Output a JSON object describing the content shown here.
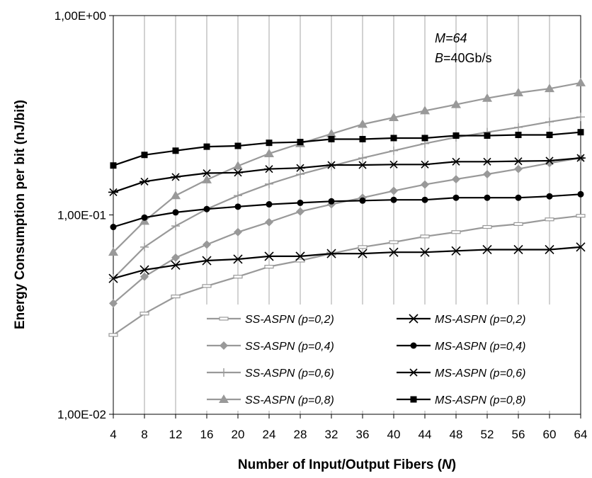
{
  "chart_data": {
    "type": "line",
    "title": "",
    "xlabel": "Number of Input/Output Fibers (N)",
    "xlabel_parts": {
      "pre": "Number of Input/Output Fibers (",
      "var": "N",
      "post": ")"
    },
    "ylabel": "Energy Consumption per bit (nJ/bit)",
    "y_scale": "log",
    "ylim": [
      0.01,
      1
    ],
    "y_tick_values": [
      1,
      0.1,
      0.01
    ],
    "y_tick_labels": [
      "1,00E+00",
      "1,00E-01",
      "1,00E-02"
    ],
    "x": [
      4,
      8,
      12,
      16,
      20,
      24,
      28,
      32,
      36,
      40,
      44,
      48,
      52,
      56,
      60,
      64
    ],
    "x_tick_labels": [
      "4",
      "8",
      "12",
      "16",
      "20",
      "24",
      "28",
      "32",
      "36",
      "40",
      "44",
      "48",
      "52",
      "56",
      "60",
      "64"
    ],
    "grid": "vertical",
    "legend_position": "bottom-right",
    "annotations": [
      {
        "var": "M",
        "text": "=64"
      },
      {
        "var": "B",
        "text": "=40Gb/s"
      }
    ],
    "series": [
      {
        "name": "SS-ASPN (p=0,2)",
        "color": "#999999",
        "marker": "dash",
        "values": [
          0.025,
          0.032,
          0.039,
          0.044,
          0.049,
          0.055,
          0.059,
          0.064,
          0.069,
          0.073,
          0.078,
          0.082,
          0.087,
          0.09,
          0.095,
          0.099
        ]
      },
      {
        "name": "SS-ASPN (p=0,4)",
        "color": "#999999",
        "marker": "diamond",
        "values": [
          0.036,
          0.049,
          0.061,
          0.071,
          0.082,
          0.092,
          0.104,
          0.113,
          0.122,
          0.132,
          0.142,
          0.151,
          0.16,
          0.17,
          0.182,
          0.193
        ]
      },
      {
        "name": "SS-ASPN (p=0,6)",
        "color": "#999999",
        "marker": "plus",
        "values": [
          0.048,
          0.069,
          0.088,
          0.107,
          0.125,
          0.143,
          0.16,
          0.176,
          0.193,
          0.21,
          0.228,
          0.245,
          0.26,
          0.275,
          0.293,
          0.31
        ]
      },
      {
        "name": "SS-ASPN (p=0,8)",
        "color": "#999999",
        "marker": "triangle",
        "values": [
          0.065,
          0.093,
          0.125,
          0.15,
          0.176,
          0.203,
          0.228,
          0.255,
          0.285,
          0.308,
          0.333,
          0.358,
          0.385,
          0.41,
          0.43,
          0.46
        ]
      },
      {
        "name": "MS-ASPN  (p=0,2)",
        "color": "#000000",
        "marker": "x",
        "values": [
          0.048,
          0.053,
          0.056,
          0.059,
          0.06,
          0.062,
          0.062,
          0.064,
          0.064,
          0.065,
          0.065,
          0.066,
          0.067,
          0.067,
          0.067,
          0.069
        ]
      },
      {
        "name": "MS-ASPN  (p=0,4)",
        "color": "#000000",
        "marker": "circle",
        "values": [
          0.087,
          0.097,
          0.103,
          0.107,
          0.11,
          0.113,
          0.115,
          0.117,
          0.118,
          0.119,
          0.119,
          0.122,
          0.122,
          0.122,
          0.124,
          0.127
        ]
      },
      {
        "name": "MS-ASPN  (p=0,6)",
        "color": "#000000",
        "marker": "asterisk",
        "values": [
          0.13,
          0.147,
          0.155,
          0.162,
          0.163,
          0.17,
          0.172,
          0.178,
          0.178,
          0.179,
          0.179,
          0.185,
          0.185,
          0.186,
          0.187,
          0.193
        ]
      },
      {
        "name": "MS-ASPN  (p=0,8)",
        "color": "#000000",
        "marker": "square",
        "values": [
          0.177,
          0.2,
          0.21,
          0.22,
          0.222,
          0.23,
          0.232,
          0.24,
          0.24,
          0.243,
          0.243,
          0.25,
          0.25,
          0.252,
          0.252,
          0.26
        ]
      }
    ]
  }
}
